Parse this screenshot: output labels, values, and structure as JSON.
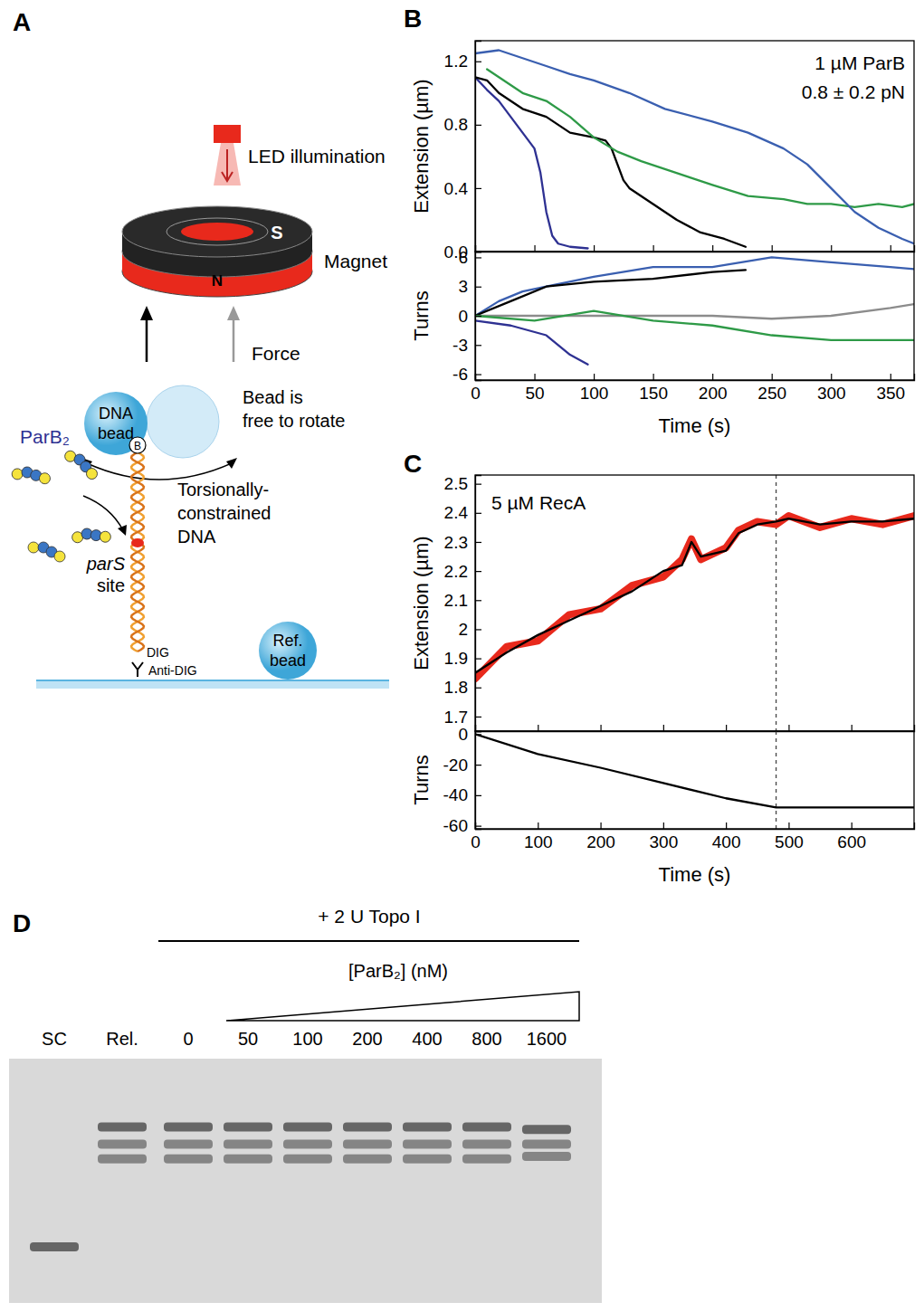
{
  "panel_letters": [
    "A",
    "B",
    "C",
    "D"
  ],
  "diagram": {
    "led": "LED illumination",
    "magnet": "Magnet",
    "magnet_poles": [
      "S",
      "N"
    ],
    "force": "Force",
    "dna_bead": [
      "DNA",
      "bead"
    ],
    "bead_note": [
      "Bead is",
      "free to rotate"
    ],
    "protein": "ParB₂",
    "biotin": "B",
    "dna_note": [
      "Torsionally-",
      "constrained",
      "DNA"
    ],
    "site": [
      "parS",
      "site"
    ],
    "dig": "DIG",
    "anti_dig": "Anti-DIG",
    "ref_bead": [
      "Ref.",
      "bead"
    ]
  },
  "chart_data": [
    {
      "type": "line",
      "ylabel": "Extension (µm)",
      "annotations": [
        "1 µM ParB",
        "0.8 ± 0.2 pN"
      ],
      "xlim": [
        0,
        370
      ],
      "xticks": [
        0,
        50,
        100,
        150,
        200,
        250,
        300,
        350
      ],
      "ylim": [
        0,
        1.33
      ],
      "yticks": [
        {
          "value": 0,
          "label": "0.0"
        },
        0.4,
        0.8,
        1.2
      ],
      "tick_labels": "y",
      "series": [
        {
          "color": "#2e3192",
          "x": [
            0,
            10,
            20,
            30,
            40,
            50,
            55,
            60,
            65,
            70,
            80,
            95
          ],
          "values": [
            1.1,
            1.02,
            0.95,
            0.85,
            0.75,
            0.65,
            0.5,
            0.25,
            0.1,
            0.05,
            0.03,
            0.02
          ]
        },
        {
          "color": "#000000",
          "x": [
            0,
            10,
            20,
            40,
            60,
            80,
            100,
            110,
            115,
            120,
            125,
            130,
            150,
            170,
            190,
            210,
            228
          ],
          "values": [
            1.1,
            1.08,
            1.0,
            0.9,
            0.85,
            0.75,
            0.72,
            0.7,
            0.65,
            0.55,
            0.45,
            0.4,
            0.3,
            0.2,
            0.12,
            0.08,
            0.03
          ]
        },
        {
          "color": "#2e9a47",
          "x": [
            10,
            20,
            40,
            60,
            80,
            100,
            120,
            140,
            160,
            180,
            200,
            230,
            260,
            280,
            300,
            320,
            340,
            360,
            370
          ],
          "values": [
            1.15,
            1.1,
            1.0,
            0.95,
            0.85,
            0.72,
            0.63,
            0.57,
            0.52,
            0.47,
            0.42,
            0.35,
            0.33,
            0.3,
            0.3,
            0.28,
            0.3,
            0.28,
            0.3
          ]
        },
        {
          "color": "#3a5fb0",
          "x": [
            0,
            20,
            40,
            60,
            80,
            100,
            130,
            160,
            200,
            230,
            260,
            280,
            300,
            320,
            340,
            360,
            370
          ],
          "values": [
            1.25,
            1.27,
            1.22,
            1.17,
            1.12,
            1.08,
            1.0,
            0.9,
            0.82,
            0.75,
            0.65,
            0.55,
            0.4,
            0.25,
            0.15,
            0.08,
            0.05
          ]
        }
      ]
    },
    {
      "type": "line",
      "xlabel": "Time (s)",
      "ylabel": "Turns",
      "xlim": [
        0,
        370
      ],
      "xticks": [
        0,
        50,
        100,
        150,
        200,
        250,
        300,
        350
      ],
      "ylim": [
        -6.6,
        6.6
      ],
      "yticks": [
        -6,
        -3,
        0,
        3,
        6
      ],
      "series": [
        {
          "color": "#8c8c8c",
          "x": [
            0,
            100,
            200,
            250,
            300,
            350,
            370
          ],
          "values": [
            0,
            0,
            0,
            -0.3,
            0,
            0.8,
            1.2
          ]
        },
        {
          "color": "#3a5fb0",
          "x": [
            0,
            20,
            40,
            60,
            100,
            150,
            200,
            250,
            300,
            350,
            370
          ],
          "values": [
            0,
            1.5,
            2.5,
            3,
            4,
            5,
            5,
            6,
            5.5,
            5,
            4.8
          ]
        },
        {
          "color": "#000000",
          "x": [
            0,
            30,
            60,
            100,
            150,
            200,
            228
          ],
          "values": [
            0,
            1.5,
            3,
            3.5,
            3.8,
            4.5,
            4.7
          ]
        },
        {
          "color": "#2e9a47",
          "x": [
            0,
            50,
            100,
            150,
            200,
            250,
            300,
            350,
            370
          ],
          "values": [
            0,
            -0.5,
            0.5,
            -0.5,
            -1,
            -2,
            -2.5,
            -2.5,
            -2.5
          ]
        },
        {
          "color": "#2e3192",
          "x": [
            0,
            30,
            60,
            80,
            95
          ],
          "values": [
            -0.5,
            -1,
            -2,
            -4,
            -5
          ]
        }
      ]
    },
    {
      "type": "line",
      "ylabel": "Extension (µm)",
      "annotations": [
        "5 µM RecA"
      ],
      "xlim": [
        0,
        700
      ],
      "xticks": [
        0,
        100,
        200,
        300,
        400,
        500,
        600
      ],
      "ylim": [
        1.65,
        2.53
      ],
      "yticks": [
        1.7,
        1.8,
        1.9,
        2.0,
        2.1,
        2.2,
        2.3,
        2.4,
        2.5
      ],
      "tick_labels": "y",
      "events": [
        480
      ],
      "series": [
        {
          "color": "#e8291c",
          "line_style": "thick",
          "x": [
            0,
            50,
            100,
            150,
            200,
            250,
            300,
            330,
            345,
            360,
            400,
            420,
            450,
            480,
            500,
            550,
            600,
            650,
            700
          ],
          "values": [
            1.83,
            1.94,
            1.96,
            2.05,
            2.07,
            2.15,
            2.18,
            2.24,
            2.31,
            2.24,
            2.28,
            2.34,
            2.37,
            2.36,
            2.39,
            2.35,
            2.38,
            2.36,
            2.39
          ]
        },
        {
          "color": "#000000",
          "x": [
            0,
            50,
            100,
            150,
            200,
            250,
            300,
            330,
            345,
            360,
            400,
            420,
            450,
            480,
            500,
            550,
            600,
            650,
            700
          ],
          "values": [
            1.85,
            1.92,
            1.98,
            2.03,
            2.08,
            2.13,
            2.2,
            2.22,
            2.3,
            2.25,
            2.27,
            2.33,
            2.36,
            2.37,
            2.38,
            2.36,
            2.37,
            2.37,
            2.38
          ]
        }
      ]
    },
    {
      "type": "line",
      "xlabel": "Time (s)",
      "ylabel": "Turns",
      "xlim": [
        0,
        700
      ],
      "xticks": [
        0,
        100,
        200,
        300,
        400,
        500,
        600
      ],
      "ylim": [
        -62,
        2
      ],
      "yticks": [
        0,
        -20,
        -40,
        -60
      ],
      "events": [
        480
      ],
      "series": [
        {
          "color": "#000000",
          "x": [
            0,
            100,
            200,
            300,
            400,
            480,
            550,
            600,
            700
          ],
          "values": [
            0,
            -13,
            -22,
            -32,
            -42,
            -48,
            -48,
            -48,
            -48
          ]
        }
      ]
    }
  ],
  "gel": {
    "title": "+ 2 U Topo I",
    "concentration_label": "[ParB₂] (nM)",
    "lanes": [
      {
        "label": "SC",
        "bands": [
          0.77
        ]
      },
      {
        "label": "Rel.",
        "bands": [
          0.28,
          0.35,
          0.41
        ]
      },
      {
        "label": "0",
        "bands": [
          0.28,
          0.35,
          0.41
        ]
      },
      {
        "label": "50",
        "bands": [
          0.28,
          0.35,
          0.41
        ]
      },
      {
        "label": "100",
        "bands": [
          0.28,
          0.35,
          0.41
        ]
      },
      {
        "label": "200",
        "bands": [
          0.28,
          0.35,
          0.41
        ]
      },
      {
        "label": "400",
        "bands": [
          0.28,
          0.35,
          0.41
        ]
      },
      {
        "label": "800",
        "bands": [
          0.28,
          0.35,
          0.41
        ]
      },
      {
        "label": "1600",
        "bands": [
          0.29,
          0.35,
          0.4
        ]
      }
    ]
  }
}
